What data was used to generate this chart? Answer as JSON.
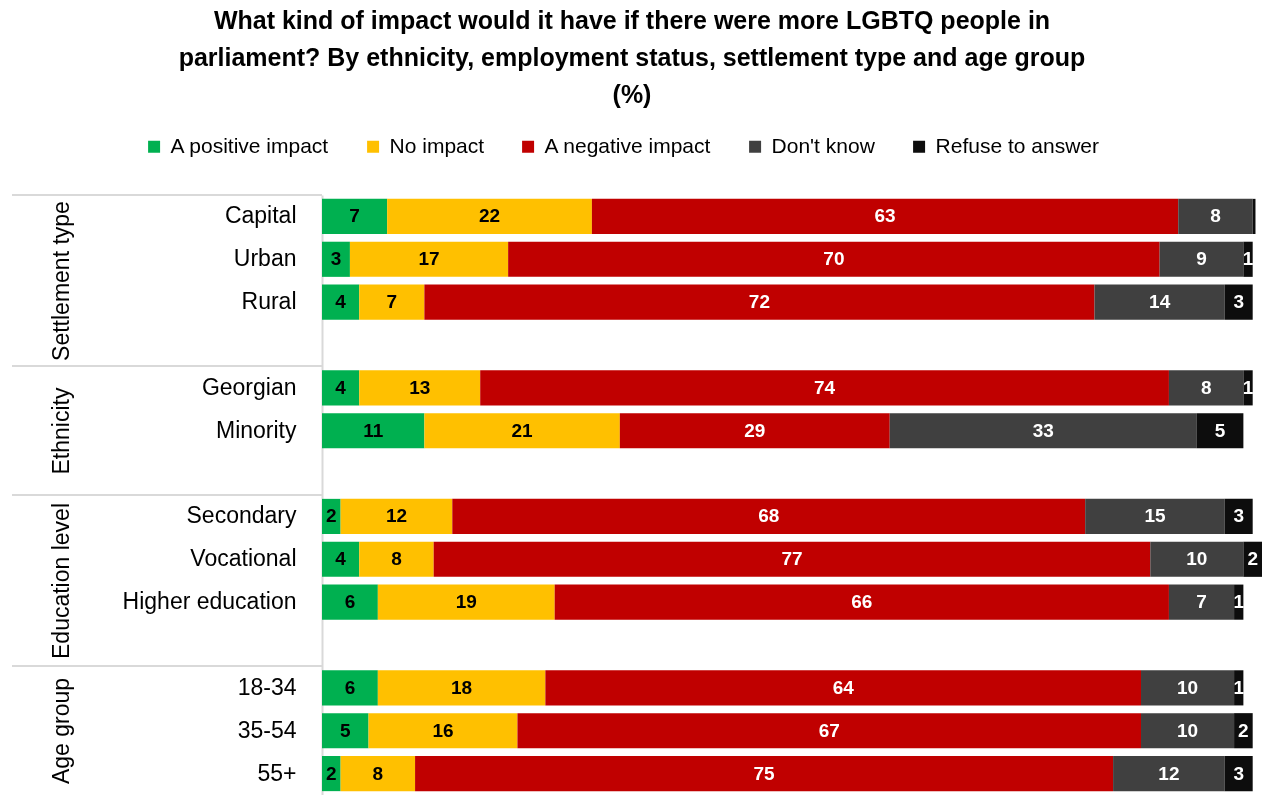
{
  "chart_data": {
    "type": "bar",
    "title": "What kind of impact would it have if there were more LGBTQ people in parliament? By ethnicity, employment status, settlement type and age group (%)",
    "orientation": "horizontal",
    "stacked": true,
    "legend": "top",
    "categories": [
      "Capital",
      "Urban",
      "Rural",
      null,
      "Georgian",
      "Minority",
      null,
      "Secondary",
      "Vocational",
      "Higher education",
      null,
      "18-34",
      "35-54",
      "55+"
    ],
    "series": [
      {
        "name": "A positive impact",
        "color": "#00b050",
        "values": [
          7,
          3,
          4,
          null,
          4,
          11,
          null,
          2,
          4,
          6,
          null,
          6,
          5,
          2
        ],
        "value_labels": [
          "7",
          "3",
          "4",
          null,
          "4",
          "11",
          null,
          "2",
          "4",
          "6",
          null,
          "6",
          "5",
          "2"
        ]
      },
      {
        "name": "No impact",
        "color": "#ffc000",
        "values": [
          22,
          17,
          7,
          null,
          13,
          21,
          null,
          12,
          8,
          19,
          null,
          18,
          16,
          8
        ],
        "value_labels": [
          "22",
          "17",
          "7",
          null,
          "13",
          "21",
          null,
          "12",
          "8",
          "19",
          null,
          "18",
          "16",
          "8"
        ]
      },
      {
        "name": "A negative impact",
        "color": "#c00000",
        "values": [
          63,
          70,
          72,
          null,
          74,
          29,
          null,
          68,
          77,
          66,
          null,
          64,
          67,
          75
        ],
        "value_labels": [
          "63",
          "70",
          "72",
          null,
          "74",
          "29",
          null,
          "68",
          "77",
          "66",
          null,
          "64",
          "67",
          "75"
        ]
      },
      {
        "name": "Don't know",
        "color": "#404040",
        "values": [
          8,
          9,
          14,
          null,
          8,
          33,
          null,
          15,
          10,
          7,
          null,
          10,
          10,
          12
        ],
        "value_labels": [
          "8",
          "9",
          "14",
          null,
          "8",
          "33",
          null,
          "15",
          "10",
          "7",
          null,
          "10",
          "10",
          "12"
        ]
      },
      {
        "name": "Refuse to answer",
        "color": "#0d0d0d",
        "values": [
          0.3,
          1,
          3,
          null,
          1,
          5,
          null,
          3,
          2,
          1,
          null,
          1,
          2,
          3
        ],
        "value_labels": [
          null,
          "1",
          "3",
          null,
          "1",
          "5",
          null,
          "3",
          "2",
          "1",
          null,
          "1",
          "2",
          "3"
        ]
      }
    ],
    "annotations": [
      "Settlement type",
      "Ethnicity",
      "Education level",
      "Age group"
    ]
  }
}
